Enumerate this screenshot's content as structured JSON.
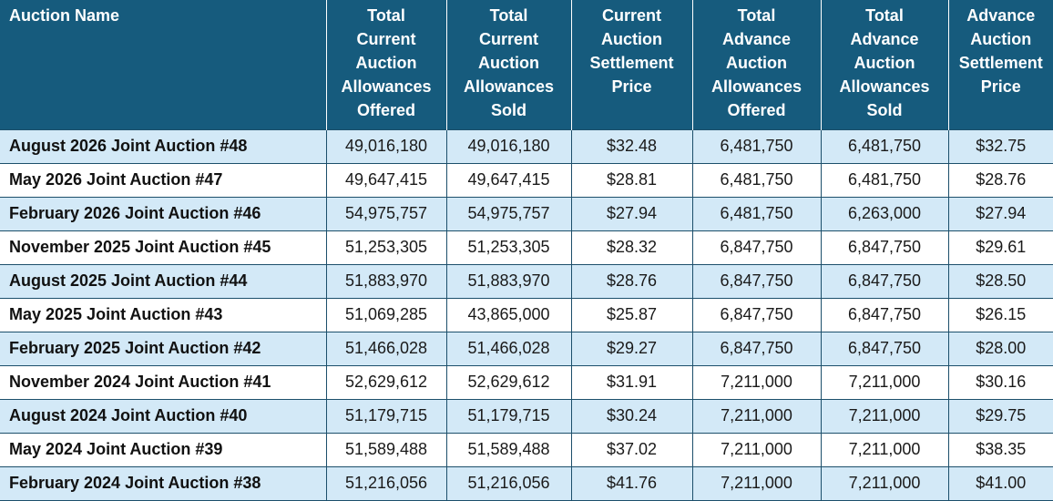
{
  "headers": [
    "Auction Name",
    "Total\nCurrent\nAuction\nAllowances\nOffered",
    "Total\nCurrent\nAuction\nAllowances\nSold",
    "Current\nAuction\nSettlement\nPrice",
    "Total\nAdvance\nAuction\nAllowances\nOffered",
    "Total\nAdvance\nAuction\nAllowances\nSold",
    "Advance\nAuction\nSettlement\nPrice"
  ],
  "rows": [
    [
      "August 2026 Joint Auction #48",
      "49,016,180",
      "49,016,180",
      "$32.48",
      "6,481,750",
      "6,481,750",
      "$32.75"
    ],
    [
      "May 2026 Joint Auction #47",
      "49,647,415",
      "49,647,415",
      "$28.81",
      "6,481,750",
      "6,481,750",
      "$28.76"
    ],
    [
      "February 2026 Joint Auction #46",
      "54,975,757",
      "54,975,757",
      "$27.94",
      "6,481,750",
      "6,263,000",
      "$27.94"
    ],
    [
      "November 2025 Joint Auction #45",
      "51,253,305",
      "51,253,305",
      "$28.32",
      "6,847,750",
      "6,847,750",
      "$29.61"
    ],
    [
      "August 2025 Joint Auction #44",
      "51,883,970",
      "51,883,970",
      "$28.76",
      "6,847,750",
      "6,847,750",
      "$28.50"
    ],
    [
      "May 2025 Joint Auction #43",
      "51,069,285",
      "43,865,000",
      "$25.87",
      "6,847,750",
      "6,847,750",
      "$26.15"
    ],
    [
      "February 2025 Joint Auction #42",
      "51,466,028",
      "51,466,028",
      "$29.27",
      "6,847,750",
      "6,847,750",
      "$28.00"
    ],
    [
      "November 2024 Joint Auction #41",
      "52,629,612",
      "52,629,612",
      "$31.91",
      "7,211,000",
      "7,211,000",
      "$30.16"
    ],
    [
      "August 2024 Joint Auction #40",
      "51,179,715",
      "51,179,715",
      "$30.24",
      "7,211,000",
      "7,211,000",
      "$29.75"
    ],
    [
      "May 2024 Joint Auction #39",
      "51,589,488",
      "51,589,488",
      "$37.02",
      "7,211,000",
      "7,211,000",
      "$38.35"
    ],
    [
      "February 2024 Joint Auction #38",
      "51,216,056",
      "51,216,056",
      "$41.76",
      "7,211,000",
      "7,211,000",
      "$41.00"
    ]
  ],
  "colors": {
    "header_bg": "#165b7d",
    "header_text": "#ffffff",
    "row_alt_bg": "#d3e9f7",
    "row_bg": "#ffffff",
    "grid": "#1c4f6b"
  }
}
